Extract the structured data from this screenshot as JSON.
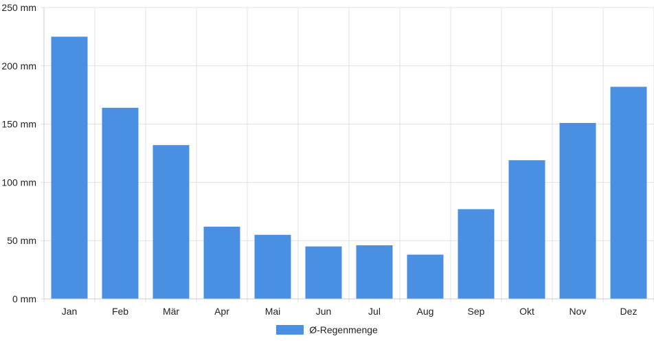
{
  "chart_data": {
    "type": "bar",
    "categories": [
      "Jan",
      "Feb",
      "Mär",
      "Apr",
      "Mai",
      "Jun",
      "Jul",
      "Aug",
      "Sep",
      "Okt",
      "Nov",
      "Dez"
    ],
    "series": [
      {
        "name": "Ø-Regenmenge",
        "values": [
          225,
          164,
          132,
          62,
          55,
          45,
          46,
          38,
          77,
          119,
          151,
          182
        ]
      }
    ],
    "y_ticks": [
      "0 mm",
      "50 mm",
      "100 mm",
      "150 mm",
      "200 mm",
      "250 mm"
    ],
    "y_unit": "mm",
    "ylim": [
      0,
      250
    ],
    "grid": true,
    "legend_position": "bottom",
    "colors": {
      "bar": "#4a90e2",
      "grid": "#e0e0e0",
      "axis": "#cccccc",
      "text": "#222222"
    }
  }
}
